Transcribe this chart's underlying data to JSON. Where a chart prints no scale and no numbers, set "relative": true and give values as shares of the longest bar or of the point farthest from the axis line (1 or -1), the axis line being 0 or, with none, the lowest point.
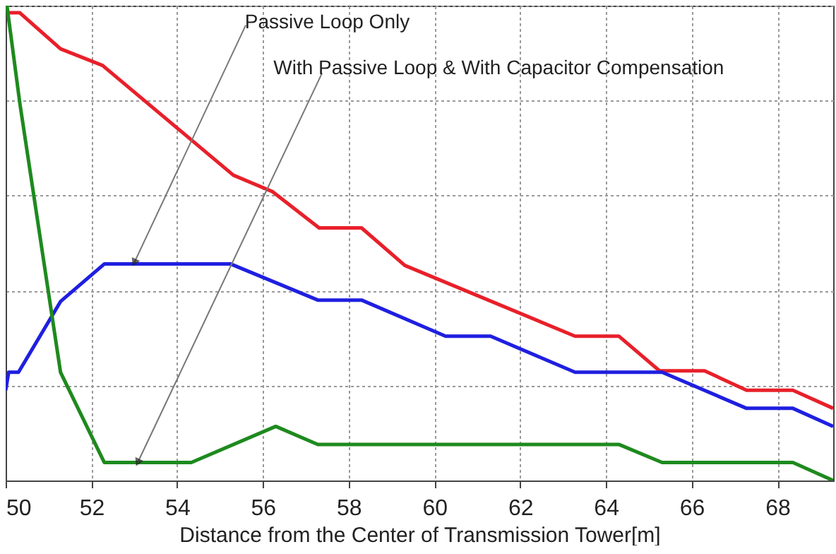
{
  "chart_data": {
    "type": "line",
    "relative": true,
    "xlabel": "Distance from the Center of Transmission Tower[m]",
    "xlim": [
      50,
      69.3
    ],
    "xticks": [
      50,
      52,
      54,
      56,
      58,
      60,
      62,
      64,
      66,
      68
    ],
    "grid": true,
    "line_style": "solid",
    "marker": "none",
    "series": [
      {
        "color": "#e8202a",
        "x": [
          50.07,
          50.33,
          51.28,
          52.26,
          55.31,
          56.23,
          57.31,
          58.3,
          59.31,
          63.28,
          64.3,
          65.25,
          66.3,
          67.28,
          68.36,
          69.3
        ],
        "values": [
          0.985,
          0.985,
          0.909,
          0.874,
          0.643,
          0.608,
          0.532,
          0.532,
          0.453,
          0.304,
          0.304,
          0.231,
          0.231,
          0.19,
          0.19,
          0.152
        ]
      },
      {
        "color": "#1f1fe0",
        "x": [
          50,
          50.07,
          50.3,
          51.28,
          52.3,
          55.25,
          57.28,
          58.3,
          60.26,
          61.31,
          63.28,
          65.31,
          67.28,
          68.36,
          69.3
        ],
        "values": [
          0.19,
          0.228,
          0.228,
          0.377,
          0.456,
          0.456,
          0.38,
          0.38,
          0.304,
          0.304,
          0.228,
          0.228,
          0.152,
          0.152,
          0.114
        ]
      },
      {
        "color": "#1e8a1e",
        "x": [
          50.03,
          50.33,
          51.28,
          52.3,
          54.33,
          56.3,
          57.28,
          64.3,
          65.31,
          68.36,
          69.3
        ],
        "values": [
          1.0,
          0.795,
          0.228,
          0.038,
          0.038,
          0.114,
          0.076,
          0.076,
          0.038,
          0.038,
          0.0
        ]
      }
    ],
    "annotations": [
      {
        "text": "Passive Loop Only",
        "x": 53.0,
        "y": 0.459
      },
      {
        "text": "With Passive Loop & With Capacitor Compensation",
        "x": 53.08,
        "y": 0.038
      }
    ]
  }
}
